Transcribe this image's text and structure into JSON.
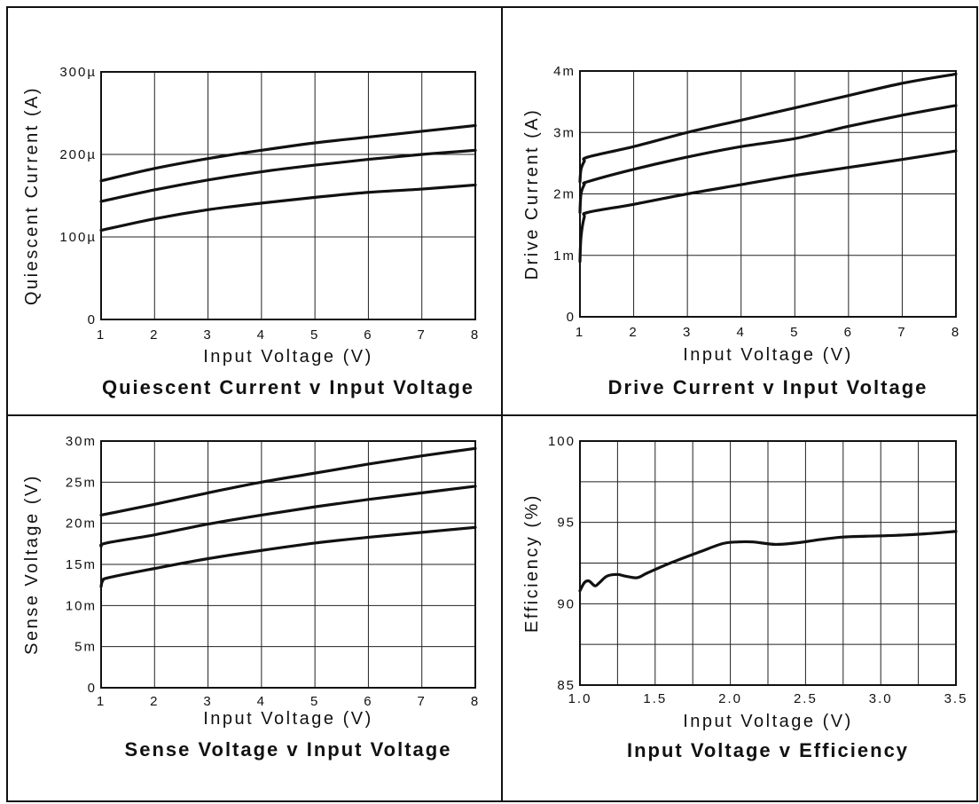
{
  "chart_data": [
    {
      "type": "line",
      "title": "Quiescent Current v Input Voltage",
      "xlabel": "Input Voltage (V)",
      "ylabel": "Quiescent Current (A)",
      "xlim": [
        1,
        8
      ],
      "ylim": [
        0,
        0.0003
      ],
      "x_ticks": [
        1,
        2,
        3,
        4,
        5,
        6,
        7,
        8
      ],
      "x_tick_labels": [
        "1",
        "2",
        "3",
        "4",
        "5",
        "6",
        "7",
        "8"
      ],
      "y_ticks": [
        0,
        0.0001,
        0.0002,
        0.0003
      ],
      "y_tick_labels": [
        "0",
        "100µ",
        "200µ",
        "300µ"
      ],
      "grid": true,
      "series": [
        {
          "x": [
            1,
            2,
            3,
            4,
            5,
            6,
            7,
            8
          ],
          "y": [
            0.000168,
            0.000183,
            0.000195,
            0.000205,
            0.000214,
            0.000221,
            0.000228,
            0.000235
          ]
        },
        {
          "x": [
            1,
            2,
            3,
            4,
            5,
            6,
            7,
            8
          ],
          "y": [
            0.000143,
            0.000157,
            0.000169,
            0.000179,
            0.000187,
            0.000194,
            0.0002,
            0.000205
          ]
        },
        {
          "x": [
            1,
            2,
            3,
            4,
            5,
            6,
            7,
            8
          ],
          "y": [
            0.000108,
            0.000122,
            0.000133,
            0.000141,
            0.000148,
            0.000154,
            0.000158,
            0.000163
          ]
        }
      ]
    },
    {
      "type": "line",
      "title": "Drive Current v Input Voltage",
      "xlabel": "Input Voltage (V)",
      "ylabel": "Drive Current (A)",
      "xlim": [
        1,
        8
      ],
      "ylim": [
        0,
        0.004
      ],
      "x_ticks": [
        1,
        2,
        3,
        4,
        5,
        6,
        7,
        8
      ],
      "x_tick_labels": [
        "1",
        "2",
        "3",
        "4",
        "5",
        "6",
        "7",
        "8"
      ],
      "y_ticks": [
        0,
        0.001,
        0.002,
        0.003,
        0.004
      ],
      "y_tick_labels": [
        "0",
        "1m",
        "2m",
        "3m",
        "4m"
      ],
      "grid": true,
      "series": [
        {
          "x": [
            1,
            1.02,
            1.08,
            1.15,
            2,
            3,
            4,
            5,
            6,
            7,
            8
          ],
          "y": [
            0.0022,
            0.0024,
            0.00253,
            0.0026,
            0.00277,
            0.003,
            0.0032,
            0.0034,
            0.0036,
            0.0038,
            0.00395
          ]
        },
        {
          "x": [
            1,
            1.02,
            1.08,
            1.15,
            2,
            3,
            4,
            5,
            6,
            7,
            8
          ],
          "y": [
            0.0017,
            0.002,
            0.00215,
            0.0022,
            0.0024,
            0.0026,
            0.00277,
            0.0029,
            0.0031,
            0.00328,
            0.00344
          ]
        },
        {
          "x": [
            1,
            1.02,
            1.08,
            1.15,
            2,
            3,
            4,
            5,
            6,
            7,
            8
          ],
          "y": [
            0.0009,
            0.0013,
            0.00162,
            0.0017,
            0.00183,
            0.002,
            0.00215,
            0.0023,
            0.00243,
            0.00256,
            0.0027
          ]
        }
      ]
    },
    {
      "type": "line",
      "title": "Sense Voltage v Input Voltage",
      "xlabel": "Input Voltage (V)",
      "ylabel": "Sense Voltage (V)",
      "xlim": [
        1,
        8
      ],
      "ylim": [
        0,
        0.03
      ],
      "x_ticks": [
        1,
        2,
        3,
        4,
        5,
        6,
        7,
        8
      ],
      "x_tick_labels": [
        "1",
        "2",
        "3",
        "4",
        "5",
        "6",
        "7",
        "8"
      ],
      "y_ticks": [
        0,
        0.005,
        0.01,
        0.015,
        0.02,
        0.025,
        0.03
      ],
      "y_tick_labels": [
        "0",
        "5m",
        "10m",
        "15m",
        "20m",
        "25m",
        "30m"
      ],
      "grid": true,
      "series": [
        {
          "x": [
            1,
            2,
            3,
            4,
            5,
            6,
            7,
            8
          ],
          "y": [
            0.021,
            0.0223,
            0.0237,
            0.025,
            0.0261,
            0.0272,
            0.0282,
            0.0291
          ]
        },
        {
          "x": [
            1,
            1.1,
            2,
            3,
            4,
            5,
            6,
            7,
            8
          ],
          "y": [
            0.0172,
            0.0176,
            0.0186,
            0.0199,
            0.021,
            0.022,
            0.0229,
            0.0237,
            0.0245
          ]
        },
        {
          "x": [
            1,
            1.03,
            1.15,
            2,
            3,
            4,
            5,
            6,
            7,
            8
          ],
          "y": [
            0.0123,
            0.013,
            0.0134,
            0.0145,
            0.0157,
            0.0167,
            0.0176,
            0.0183,
            0.0189,
            0.0195
          ]
        }
      ]
    },
    {
      "type": "line",
      "title": "Input Voltage v Efficiency",
      "xlabel": "Input Voltage (V)",
      "ylabel": "Efficiency (%)",
      "xlim": [
        1.0,
        3.5
      ],
      "ylim": [
        85,
        100
      ],
      "x_ticks": [
        1.0,
        1.25,
        1.5,
        1.75,
        2.0,
        2.25,
        2.5,
        2.75,
        3.0,
        3.25,
        3.5
      ],
      "x_tick_labels": [
        "1.0",
        "",
        "1.5",
        "",
        "2.0",
        "",
        "2.5",
        "",
        "3.0",
        "",
        "3.5"
      ],
      "y_ticks": [
        85,
        87.5,
        90,
        92.5,
        95,
        97.5,
        100
      ],
      "y_tick_labels": [
        "85",
        "",
        "90",
        "",
        "95",
        "",
        "100"
      ],
      "grid": true,
      "series": [
        {
          "x": [
            1.0,
            1.03,
            1.06,
            1.1,
            1.13,
            1.18,
            1.25,
            1.3,
            1.38,
            1.45,
            1.6,
            1.8,
            1.95,
            2.05,
            2.15,
            2.3,
            2.45,
            2.6,
            2.75,
            2.9,
            3.1,
            3.3,
            3.5
          ],
          "y": [
            90.8,
            91.3,
            91.4,
            91.1,
            91.3,
            91.7,
            91.8,
            91.7,
            91.6,
            91.9,
            92.5,
            93.2,
            93.7,
            93.8,
            93.8,
            93.65,
            93.75,
            93.95,
            94.1,
            94.15,
            94.2,
            94.3,
            94.45
          ]
        }
      ]
    }
  ]
}
